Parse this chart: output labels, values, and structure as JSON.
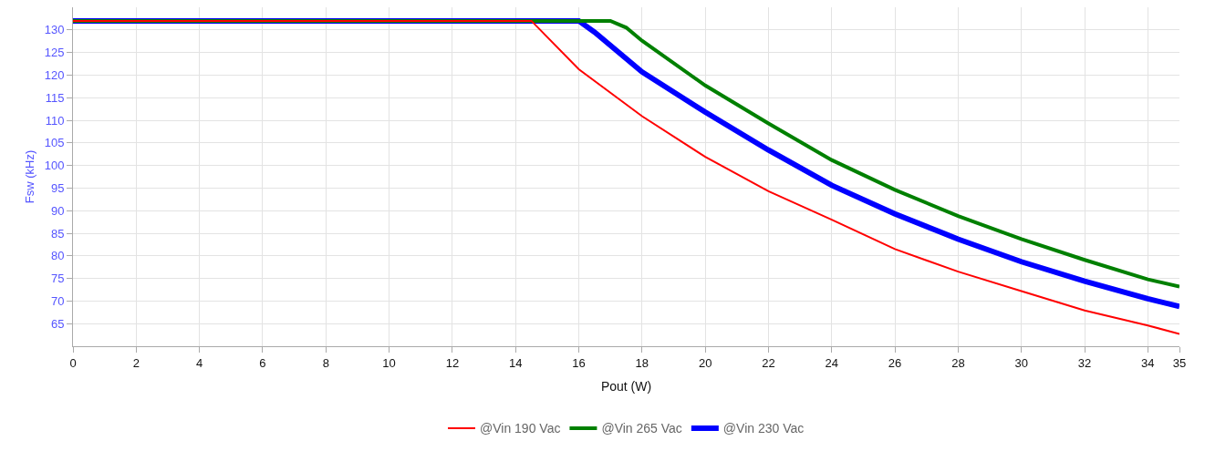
{
  "chart_data": {
    "type": "line",
    "xlabel": "Pout (W)",
    "ylabel": "Fsw (kHz)",
    "xlim": [
      0,
      35
    ],
    "xticks": [
      0,
      2,
      4,
      6,
      8,
      10,
      12,
      14,
      16,
      18,
      20,
      22,
      24,
      26,
      28,
      30,
      32,
      34,
      35
    ],
    "ylim": [
      60,
      135
    ],
    "yticks": [
      65,
      70,
      75,
      80,
      85,
      90,
      95,
      100,
      105,
      110,
      115,
      120,
      125,
      130
    ],
    "grid": true,
    "legend": "bottom",
    "marker": "none",
    "line_style": "solid",
    "series": [
      {
        "name": "@Vin 190 Vac",
        "color": "#ff0000",
        "x": [
          0,
          14.5,
          16,
          18,
          20,
          22,
          24,
          26,
          28,
          30,
          32,
          34,
          35
        ],
        "values": [
          132,
          132,
          121.3,
          110.9,
          101.9,
          94.3,
          88.0,
          81.5,
          76.5,
          72.2,
          67.9,
          64.6,
          62.7
        ]
      },
      {
        "name": "@Vin 265 Vac",
        "color": "#008000",
        "x": [
          0,
          17,
          17.5,
          18,
          20,
          22,
          24,
          26,
          28,
          30,
          32,
          34,
          35
        ],
        "values": [
          132,
          132,
          130.5,
          127.6,
          117.7,
          109.3,
          101.2,
          94.6,
          88.8,
          83.7,
          79.1,
          74.8,
          73.2
        ]
      },
      {
        "name": "@Vin 230 Vac",
        "color": "#0000ff",
        "x": [
          0,
          16,
          16.5,
          18,
          20,
          22,
          24,
          26,
          28,
          30,
          32,
          34,
          35
        ],
        "values": [
          132,
          132,
          129.5,
          120.7,
          111.8,
          103.4,
          95.6,
          89.3,
          83.7,
          78.7,
          74.4,
          70.5,
          68.8
        ]
      }
    ]
  }
}
